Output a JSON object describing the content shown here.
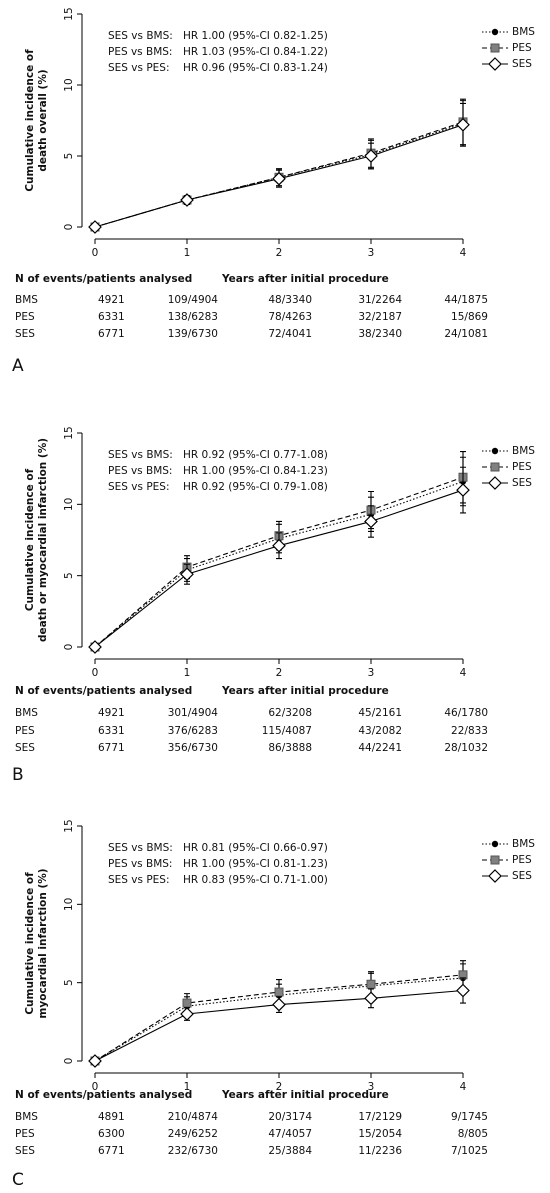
{
  "chart_data": [
    {
      "type": "line",
      "panel": "A",
      "ylabel": [
        "Cumulative incidence of",
        "death overall (%)"
      ],
      "xlabel": "Years after initial procedure",
      "x": [
        0,
        1,
        2,
        3,
        4
      ],
      "xlim": [
        0,
        4
      ],
      "xticks": [
        0,
        1,
        2,
        3,
        4
      ],
      "ylim": [
        0,
        15
      ],
      "yticks": [
        0,
        5,
        10,
        15
      ],
      "annotations": [
        [
          "SES vs BMS:",
          "HR 1.00 (95%-CI 0.82-1.25)"
        ],
        [
          "PES vs BMS:",
          "HR 1.03 (95%-CI 0.84-1.22)"
        ],
        [
          "SES vs PES:",
          "HR 0.96 (95%-CI 0.83-1.24)"
        ]
      ],
      "series": [
        {
          "name": "BMS",
          "color": "#000000",
          "values": [
            0,
            1.9,
            3.5,
            5.1,
            7.3
          ],
          "errors": [
            0,
            0.3,
            0.6,
            1.0,
            1.6
          ]
        },
        {
          "name": "PES",
          "color": "#808080",
          "values": [
            0,
            1.9,
            3.5,
            5.2,
            7.4
          ],
          "errors": [
            0,
            0.3,
            0.6,
            1.0,
            1.6
          ]
        },
        {
          "name": "SES",
          "color": "#ffffff",
          "values": [
            0,
            1.9,
            3.4,
            5.0,
            7.2
          ],
          "errors": [
            0,
            0.3,
            0.6,
            0.9,
            1.5
          ]
        }
      ],
      "table": {
        "header": "N of events/patients analysed",
        "rows": [
          [
            "BMS",
            "4921",
            "109/4904",
            "48/3340",
            "31/2264",
            "44/1875"
          ],
          [
            "PES",
            "6331",
            "138/6283",
            "78/4263",
            "32/2187",
            "15/869"
          ],
          [
            "SES",
            "6771",
            "139/6730",
            "72/4041",
            "38/2340",
            "24/1081"
          ]
        ]
      }
    },
    {
      "type": "line",
      "panel": "B",
      "ylabel": [
        "Cumulative incidence of",
        "death or myocardial infarction (%)"
      ],
      "xlabel": "Years after initial procedure",
      "x": [
        0,
        1,
        2,
        3,
        4
      ],
      "xlim": [
        0,
        4
      ],
      "xticks": [
        0,
        1,
        2,
        3,
        4
      ],
      "ylim": [
        0,
        15
      ],
      "yticks": [
        0,
        5,
        10,
        15
      ],
      "annotations": [
        [
          "SES vs BMS:",
          "HR 0.92 (95%-CI 0.77-1.08)"
        ],
        [
          "PES vs BMS:",
          "HR 1.00 (95%-CI 0.84-1.23)"
        ],
        [
          "SES vs PES:",
          "HR 0.92 (95%-CI 0.79-1.08)"
        ]
      ],
      "series": [
        {
          "name": "BMS",
          "color": "#000000",
          "values": [
            0,
            5.4,
            7.6,
            9.3,
            11.6
          ],
          "errors": [
            0,
            0.8,
            1.0,
            1.2,
            1.7
          ]
        },
        {
          "name": "PES",
          "color": "#808080",
          "values": [
            0,
            5.6,
            7.8,
            9.6,
            11.9
          ],
          "errors": [
            0,
            0.8,
            1.0,
            1.3,
            1.8
          ]
        },
        {
          "name": "SES",
          "color": "#ffffff",
          "values": [
            0,
            5.1,
            7.1,
            8.8,
            11.0
          ],
          "errors": [
            0,
            0.7,
            0.9,
            1.1,
            1.6
          ]
        }
      ],
      "table": {
        "header": "N of events/patients analysed",
        "rows": [
          [
            "BMS",
            "4921",
            "301/4904",
            "62/3208",
            "45/2161",
            "46/1780"
          ],
          [
            "PES",
            "6331",
            "376/6283",
            "115/4087",
            "43/2082",
            "22/833"
          ],
          [
            "SES",
            "6771",
            "356/6730",
            "86/3888",
            "44/2241",
            "28/1032"
          ]
        ]
      }
    },
    {
      "type": "line",
      "panel": "C",
      "ylabel": [
        "Cumulative incidence of",
        "myocardial infarction (%)"
      ],
      "xlabel": "Years after initial procedure",
      "x": [
        0,
        1,
        2,
        3,
        4
      ],
      "xlim": [
        0,
        4
      ],
      "xticks": [
        0,
        1,
        2,
        3,
        4
      ],
      "ylim": [
        0,
        15
      ],
      "yticks": [
        0,
        5,
        10,
        15
      ],
      "annotations": [
        [
          "SES vs BMS:",
          "HR 0.81 (95%-CI 0.66-0.97)"
        ],
        [
          "PES vs BMS:",
          "HR 1.00 (95%-CI 0.81-1.23)"
        ],
        [
          "SES vs PES:",
          "HR 0.83 (95%-CI 0.71-1.00)"
        ]
      ],
      "series": [
        {
          "name": "BMS",
          "color": "#000000",
          "values": [
            0,
            3.5,
            4.2,
            4.8,
            5.3
          ],
          "errors": [
            0,
            0.6,
            0.7,
            0.8,
            0.9
          ]
        },
        {
          "name": "PES",
          "color": "#808080",
          "values": [
            0,
            3.7,
            4.4,
            4.9,
            5.5
          ],
          "errors": [
            0,
            0.6,
            0.8,
            0.8,
            0.9
          ]
        },
        {
          "name": "SES",
          "color": "#ffffff",
          "values": [
            0,
            3.0,
            3.6,
            4.0,
            4.5
          ],
          "errors": [
            0,
            0.4,
            0.5,
            0.6,
            0.8
          ]
        }
      ],
      "table": {
        "header": "N of events/patients analysed",
        "rows": [
          [
            "BMS",
            "4891",
            "210/4874",
            "20/3174",
            "17/2129",
            "9/1745"
          ],
          [
            "PES",
            "6300",
            "249/6252",
            "47/4057",
            "15/2054",
            "8/805"
          ],
          [
            "SES",
            "6771",
            "232/6730",
            "25/3884",
            "11/2236",
            "7/1025"
          ]
        ]
      }
    }
  ]
}
